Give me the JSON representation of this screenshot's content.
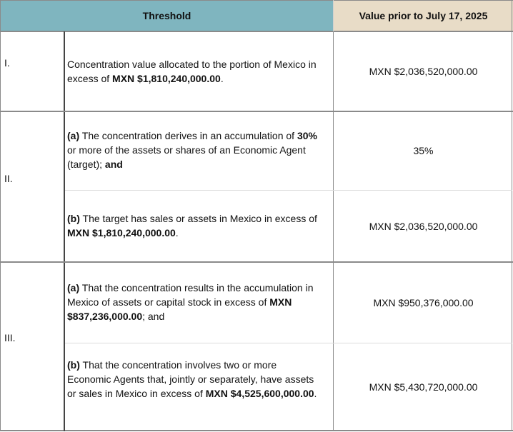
{
  "header": {
    "threshold": "Threshold",
    "value_prior": "Value prior to July 17, 2025"
  },
  "rows": [
    {
      "numeral": "I.",
      "parts": [
        {
          "t1": "Concentration value allocated to the portion of Mexico in excess of ",
          "b1": "MXN $1,810,240,000.00",
          "t2": ".",
          "value": "MXN $2,036,520,000.00"
        }
      ]
    },
    {
      "numeral": "II.",
      "parts": [
        {
          "b0": "(a)",
          "t1": " The concentration derives in an accumulation of ",
          "b1": "30%",
          "t2": " or more of the assets or shares of an Economic Agent (target); ",
          "b2": "and",
          "value": "35%"
        },
        {
          "b0": "(b)",
          "t1": " The target has sales or assets in Mexico in excess of ",
          "b1": "MXN $1,810,240,000.00",
          "t2": ".",
          "value": "MXN $2,036,520,000.00"
        }
      ]
    },
    {
      "numeral": "III.",
      "parts": [
        {
          "b0": "(a)",
          "t1": " That the concentration results in the accumulation in Mexico of assets or capital stock in excess of ",
          "b1": "MXN $837,236,000.00",
          "t2": "; and",
          "value": "MXN $950,376,000.00"
        },
        {
          "b0": "(b)",
          "t1": " That the concentration involves two or more Economic Agents that, jointly or separately, have assets or sales in Mexico in excess of ",
          "b1": "MXN $4,525,600,000.00",
          "t2": ".",
          "value": "MXN $5,430,720,000.00"
        }
      ]
    }
  ]
}
